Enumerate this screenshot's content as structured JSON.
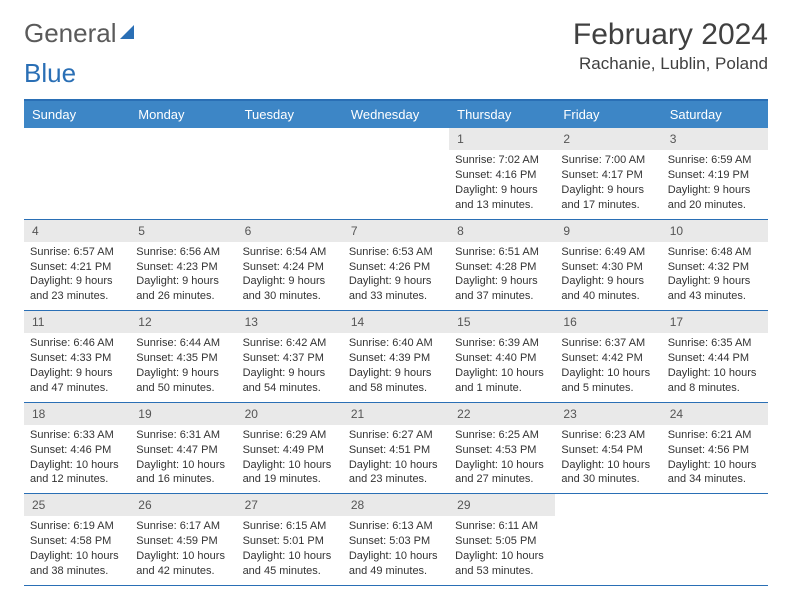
{
  "logo": {
    "word1": "General",
    "word2": "Blue"
  },
  "title": "February 2024",
  "location": "Rachanie, Lublin, Poland",
  "colors": {
    "header_bg": "#3d86c6",
    "border": "#2a6fb5",
    "daynum_bg": "#e9e9e9",
    "text": "#333333",
    "title_text": "#404040"
  },
  "weekdays": [
    "Sunday",
    "Monday",
    "Tuesday",
    "Wednesday",
    "Thursday",
    "Friday",
    "Saturday"
  ],
  "cells": [
    {
      "day": "",
      "sunrise": "",
      "sunset": "",
      "daylight": ""
    },
    {
      "day": "",
      "sunrise": "",
      "sunset": "",
      "daylight": ""
    },
    {
      "day": "",
      "sunrise": "",
      "sunset": "",
      "daylight": ""
    },
    {
      "day": "",
      "sunrise": "",
      "sunset": "",
      "daylight": ""
    },
    {
      "day": "1",
      "sunrise": "Sunrise: 7:02 AM",
      "sunset": "Sunset: 4:16 PM",
      "daylight": "Daylight: 9 hours and 13 minutes."
    },
    {
      "day": "2",
      "sunrise": "Sunrise: 7:00 AM",
      "sunset": "Sunset: 4:17 PM",
      "daylight": "Daylight: 9 hours and 17 minutes."
    },
    {
      "day": "3",
      "sunrise": "Sunrise: 6:59 AM",
      "sunset": "Sunset: 4:19 PM",
      "daylight": "Daylight: 9 hours and 20 minutes."
    },
    {
      "day": "4",
      "sunrise": "Sunrise: 6:57 AM",
      "sunset": "Sunset: 4:21 PM",
      "daylight": "Daylight: 9 hours and 23 minutes."
    },
    {
      "day": "5",
      "sunrise": "Sunrise: 6:56 AM",
      "sunset": "Sunset: 4:23 PM",
      "daylight": "Daylight: 9 hours and 26 minutes."
    },
    {
      "day": "6",
      "sunrise": "Sunrise: 6:54 AM",
      "sunset": "Sunset: 4:24 PM",
      "daylight": "Daylight: 9 hours and 30 minutes."
    },
    {
      "day": "7",
      "sunrise": "Sunrise: 6:53 AM",
      "sunset": "Sunset: 4:26 PM",
      "daylight": "Daylight: 9 hours and 33 minutes."
    },
    {
      "day": "8",
      "sunrise": "Sunrise: 6:51 AM",
      "sunset": "Sunset: 4:28 PM",
      "daylight": "Daylight: 9 hours and 37 minutes."
    },
    {
      "day": "9",
      "sunrise": "Sunrise: 6:49 AM",
      "sunset": "Sunset: 4:30 PM",
      "daylight": "Daylight: 9 hours and 40 minutes."
    },
    {
      "day": "10",
      "sunrise": "Sunrise: 6:48 AM",
      "sunset": "Sunset: 4:32 PM",
      "daylight": "Daylight: 9 hours and 43 minutes."
    },
    {
      "day": "11",
      "sunrise": "Sunrise: 6:46 AM",
      "sunset": "Sunset: 4:33 PM",
      "daylight": "Daylight: 9 hours and 47 minutes."
    },
    {
      "day": "12",
      "sunrise": "Sunrise: 6:44 AM",
      "sunset": "Sunset: 4:35 PM",
      "daylight": "Daylight: 9 hours and 50 minutes."
    },
    {
      "day": "13",
      "sunrise": "Sunrise: 6:42 AM",
      "sunset": "Sunset: 4:37 PM",
      "daylight": "Daylight: 9 hours and 54 minutes."
    },
    {
      "day": "14",
      "sunrise": "Sunrise: 6:40 AM",
      "sunset": "Sunset: 4:39 PM",
      "daylight": "Daylight: 9 hours and 58 minutes."
    },
    {
      "day": "15",
      "sunrise": "Sunrise: 6:39 AM",
      "sunset": "Sunset: 4:40 PM",
      "daylight": "Daylight: 10 hours and 1 minute."
    },
    {
      "day": "16",
      "sunrise": "Sunrise: 6:37 AM",
      "sunset": "Sunset: 4:42 PM",
      "daylight": "Daylight: 10 hours and 5 minutes."
    },
    {
      "day": "17",
      "sunrise": "Sunrise: 6:35 AM",
      "sunset": "Sunset: 4:44 PM",
      "daylight": "Daylight: 10 hours and 8 minutes."
    },
    {
      "day": "18",
      "sunrise": "Sunrise: 6:33 AM",
      "sunset": "Sunset: 4:46 PM",
      "daylight": "Daylight: 10 hours and 12 minutes."
    },
    {
      "day": "19",
      "sunrise": "Sunrise: 6:31 AM",
      "sunset": "Sunset: 4:47 PM",
      "daylight": "Daylight: 10 hours and 16 minutes."
    },
    {
      "day": "20",
      "sunrise": "Sunrise: 6:29 AM",
      "sunset": "Sunset: 4:49 PM",
      "daylight": "Daylight: 10 hours and 19 minutes."
    },
    {
      "day": "21",
      "sunrise": "Sunrise: 6:27 AM",
      "sunset": "Sunset: 4:51 PM",
      "daylight": "Daylight: 10 hours and 23 minutes."
    },
    {
      "day": "22",
      "sunrise": "Sunrise: 6:25 AM",
      "sunset": "Sunset: 4:53 PM",
      "daylight": "Daylight: 10 hours and 27 minutes."
    },
    {
      "day": "23",
      "sunrise": "Sunrise: 6:23 AM",
      "sunset": "Sunset: 4:54 PM",
      "daylight": "Daylight: 10 hours and 30 minutes."
    },
    {
      "day": "24",
      "sunrise": "Sunrise: 6:21 AM",
      "sunset": "Sunset: 4:56 PM",
      "daylight": "Daylight: 10 hours and 34 minutes."
    },
    {
      "day": "25",
      "sunrise": "Sunrise: 6:19 AM",
      "sunset": "Sunset: 4:58 PM",
      "daylight": "Daylight: 10 hours and 38 minutes."
    },
    {
      "day": "26",
      "sunrise": "Sunrise: 6:17 AM",
      "sunset": "Sunset: 4:59 PM",
      "daylight": "Daylight: 10 hours and 42 minutes."
    },
    {
      "day": "27",
      "sunrise": "Sunrise: 6:15 AM",
      "sunset": "Sunset: 5:01 PM",
      "daylight": "Daylight: 10 hours and 45 minutes."
    },
    {
      "day": "28",
      "sunrise": "Sunrise: 6:13 AM",
      "sunset": "Sunset: 5:03 PM",
      "daylight": "Daylight: 10 hours and 49 minutes."
    },
    {
      "day": "29",
      "sunrise": "Sunrise: 6:11 AM",
      "sunset": "Sunset: 5:05 PM",
      "daylight": "Daylight: 10 hours and 53 minutes."
    },
    {
      "day": "",
      "sunrise": "",
      "sunset": "",
      "daylight": ""
    },
    {
      "day": "",
      "sunrise": "",
      "sunset": "",
      "daylight": ""
    }
  ]
}
